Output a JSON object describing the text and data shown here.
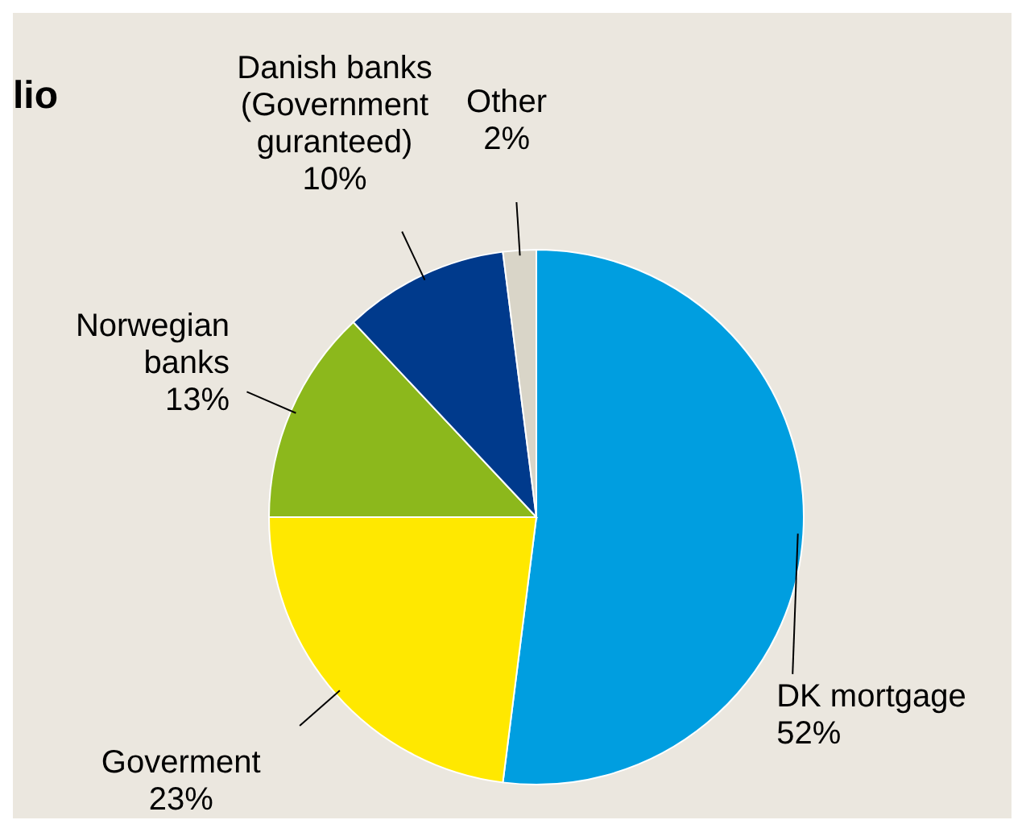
{
  "chart_data": {
    "type": "pie",
    "title": "lio",
    "categories": [
      "DK mortgage",
      "Goverment",
      "Norwegian banks",
      "Danish banks (Government guranteed)",
      "Other"
    ],
    "values": [
      52,
      23,
      13,
      10,
      2
    ],
    "colors": [
      "#009ee0",
      "#ffe800",
      "#8cb81c",
      "#003a8c",
      "#d9d5c8"
    ],
    "value_labels": [
      "52%",
      "23%",
      "13%",
      "10%",
      "2%"
    ],
    "legend": false
  }
}
